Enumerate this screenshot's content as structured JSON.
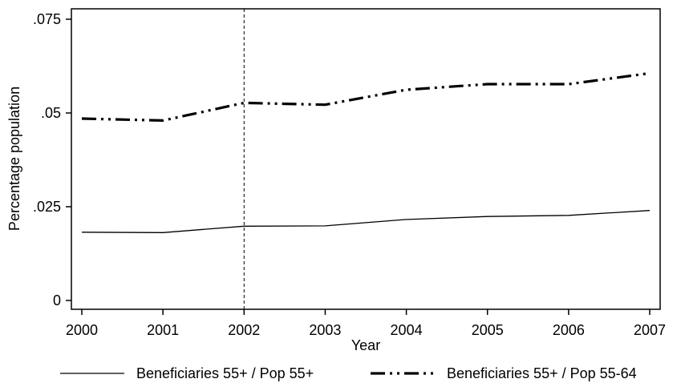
{
  "chart_data": {
    "type": "line",
    "xlabel": "Year",
    "ylabel": "Percentage population",
    "x": [
      2000,
      2001,
      2002,
      2003,
      2004,
      2005,
      2006,
      2007
    ],
    "x_tick_labels": [
      "2000",
      "2001",
      "2002",
      "2003",
      "2004",
      "2005",
      "2006",
      "2007"
    ],
    "y_ticks": [
      0,
      0.025,
      0.05,
      0.075
    ],
    "y_tick_labels": [
      "0",
      ".025",
      ".05",
      ".075"
    ],
    "xlim": [
      2000,
      2007
    ],
    "ylim": [
      0,
      0.075
    ],
    "grid": false,
    "legend_position": "bottom",
    "reference_line_x": 2002,
    "series": [
      {
        "name": "Beneficiaries 55+ / Pop 55+",
        "style": "solid",
        "color": "#000000",
        "values": [
          0.0182,
          0.0181,
          0.0198,
          0.0199,
          0.0216,
          0.0224,
          0.0227,
          0.024
        ]
      },
      {
        "name": "Beneficiaries 55+ / Pop 55-64",
        "style": "dash-dot-dot",
        "color": "#000000",
        "values": [
          0.0485,
          0.048,
          0.0527,
          0.0522,
          0.0562,
          0.0577,
          0.0577,
          0.0606
        ]
      }
    ]
  }
}
